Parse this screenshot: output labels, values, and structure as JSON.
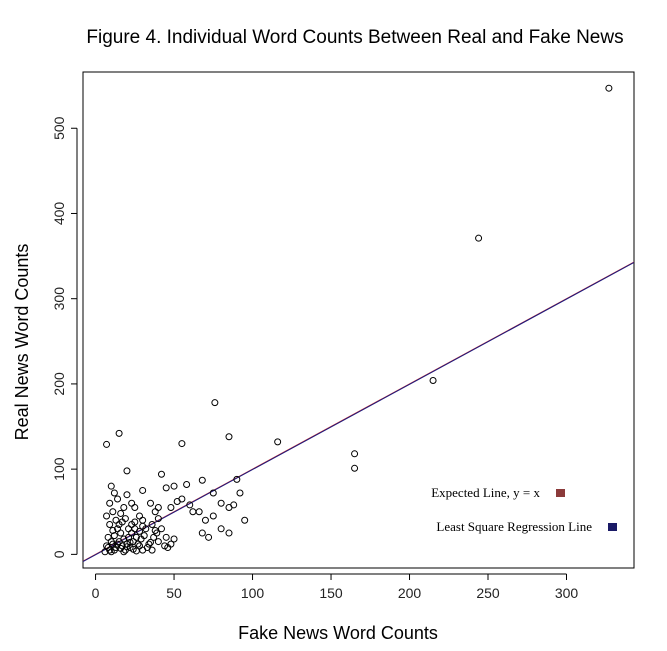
{
  "chart_data": {
    "type": "scatter",
    "title": "Figure 4. Individual Word Counts Between Real and Fake News",
    "xlabel": "Fake News Word Counts",
    "ylabel": "Real News Word Counts",
    "xlim": [
      -8,
      343
    ],
    "ylim": [
      -16,
      566
    ],
    "x_ticks": [
      0,
      50,
      100,
      150,
      200,
      250,
      300
    ],
    "y_ticks": [
      0,
      100,
      200,
      300,
      400,
      500
    ],
    "series": [
      {
        "points": [
          [
            327,
            547
          ],
          [
            244,
            371
          ],
          [
            215,
            204
          ],
          [
            116,
            132
          ],
          [
            165,
            118
          ],
          [
            165,
            101
          ],
          [
            76,
            178
          ],
          [
            85,
            138
          ],
          [
            55,
            130
          ],
          [
            15,
            142
          ],
          [
            7,
            129
          ],
          [
            20,
            98
          ],
          [
            42,
            94
          ],
          [
            90,
            88
          ],
          [
            68,
            87
          ],
          [
            58,
            82
          ],
          [
            50,
            80
          ],
          [
            45,
            78
          ],
          [
            30,
            75
          ],
          [
            10,
            80
          ],
          [
            12,
            72
          ],
          [
            14,
            65
          ],
          [
            20,
            70
          ],
          [
            23,
            60
          ],
          [
            25,
            55
          ],
          [
            35,
            60
          ],
          [
            38,
            50
          ],
          [
            40,
            55
          ],
          [
            48,
            55
          ],
          [
            52,
            62
          ],
          [
            55,
            65
          ],
          [
            60,
            58
          ],
          [
            62,
            50
          ],
          [
            66,
            50
          ],
          [
            75,
            72
          ],
          [
            80,
            60
          ],
          [
            85,
            55
          ],
          [
            88,
            58
          ],
          [
            92,
            72
          ],
          [
            95,
            40
          ],
          [
            70,
            40
          ],
          [
            72,
            20
          ],
          [
            68,
            25
          ],
          [
            75,
            45
          ],
          [
            80,
            30
          ],
          [
            85,
            25
          ],
          [
            40,
            15
          ],
          [
            45,
            20
          ],
          [
            50,
            18
          ],
          [
            30,
            40
          ],
          [
            28,
            45
          ],
          [
            32,
            30
          ],
          [
            36,
            35
          ],
          [
            42,
            30
          ],
          [
            44,
            10
          ],
          [
            46,
            8
          ],
          [
            48,
            12
          ],
          [
            18,
            55
          ],
          [
            16,
            48
          ],
          [
            9,
            35
          ],
          [
            11,
            28
          ],
          [
            8,
            20
          ],
          [
            10,
            15
          ],
          [
            12,
            22
          ],
          [
            14,
            30
          ],
          [
            16,
            25
          ],
          [
            18,
            18
          ],
          [
            20,
            12
          ],
          [
            22,
            8
          ],
          [
            24,
            15
          ],
          [
            26,
            20
          ],
          [
            28,
            10
          ],
          [
            30,
            5
          ],
          [
            7,
            10
          ],
          [
            9,
            5
          ],
          [
            11,
            12
          ],
          [
            13,
            8
          ],
          [
            15,
            15
          ],
          [
            17,
            10
          ],
          [
            19,
            5
          ],
          [
            21,
            20
          ],
          [
            23,
            25
          ],
          [
            25,
            30
          ],
          [
            27,
            12
          ],
          [
            29,
            18
          ],
          [
            31,
            22
          ],
          [
            33,
            8
          ],
          [
            35,
            14
          ],
          [
            37,
            20
          ],
          [
            39,
            25
          ],
          [
            6,
            3
          ],
          [
            8,
            8
          ],
          [
            10,
            3
          ],
          [
            12,
            5
          ],
          [
            14,
            12
          ],
          [
            16,
            7
          ],
          [
            18,
            3
          ],
          [
            20,
            9
          ],
          [
            22,
            14
          ],
          [
            24,
            6
          ],
          [
            26,
            4
          ],
          [
            28,
            27
          ],
          [
            30,
            33
          ],
          [
            34,
            12
          ],
          [
            36,
            5
          ],
          [
            38,
            28
          ],
          [
            40,
            42
          ],
          [
            7,
            45
          ],
          [
            9,
            60
          ],
          [
            11,
            50
          ],
          [
            13,
            40
          ],
          [
            15,
            35
          ],
          [
            17,
            38
          ],
          [
            19,
            42
          ],
          [
            21,
            30
          ],
          [
            23,
            35
          ],
          [
            25,
            38
          ]
        ]
      }
    ],
    "lines": [
      {
        "name": "Expected Line, y = x",
        "slope": 1.0,
        "intercept": 0,
        "color": "#c62828"
      },
      {
        "name": "Least Square Regression Line",
        "slope": 1.0,
        "intercept": -0.5,
        "color": "#1a1a80"
      }
    ],
    "legend": {
      "position": "bottom-right",
      "items": [
        {
          "label": "Expected Line, y = x",
          "color": "#8b3a3a"
        },
        {
          "label": "Least Square Regression Line",
          "color": "#1a1a66"
        }
      ]
    },
    "grid": false
  }
}
